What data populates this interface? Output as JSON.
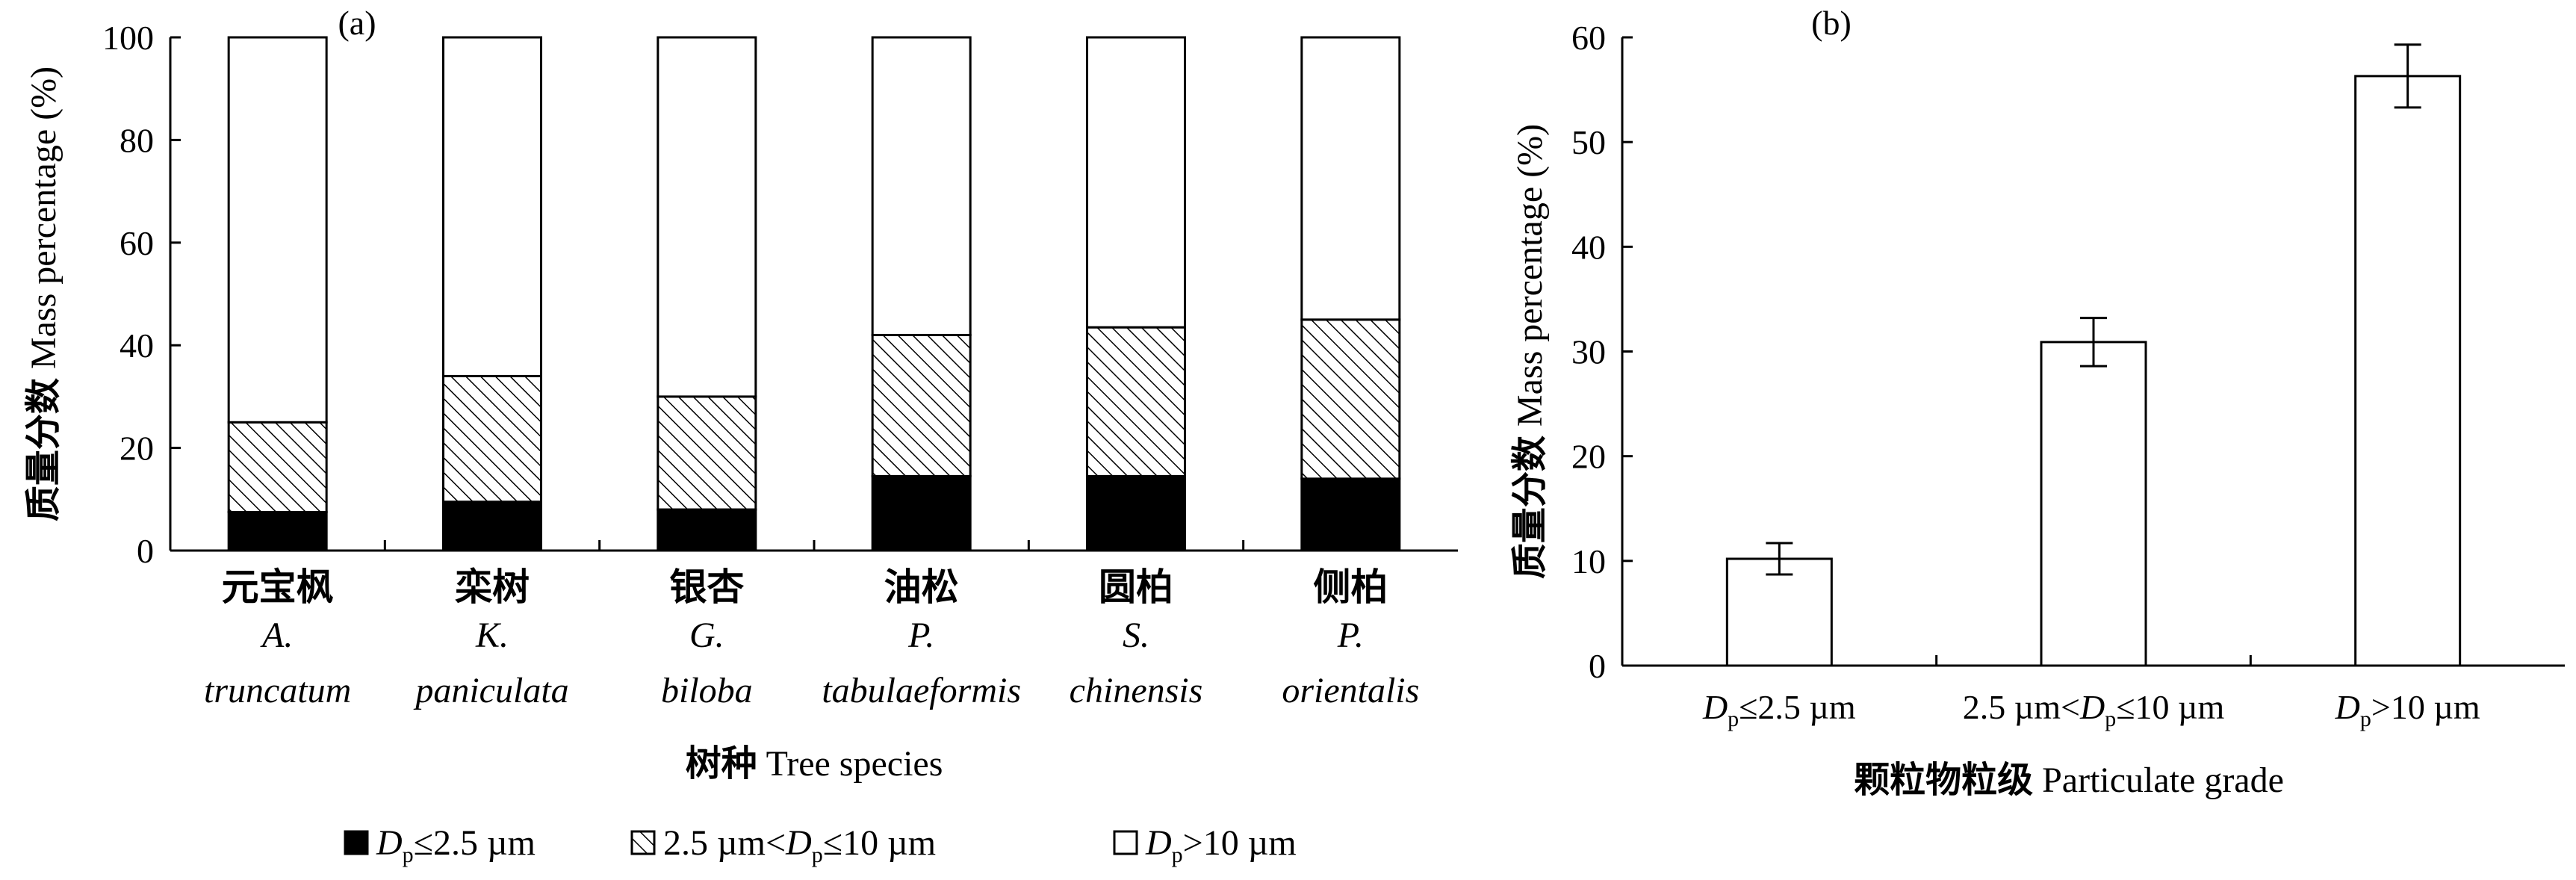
{
  "chart_data": [
    {
      "panel": "(a)",
      "type": "bar",
      "stacked": true,
      "title": "",
      "categories": [
        {
          "cn": "元宝枫",
          "latin1": "A.",
          "latin2": "truncatum"
        },
        {
          "cn": "栾树",
          "latin1": "K.",
          "latin2": "paniculata"
        },
        {
          "cn": "银杏",
          "latin1": "G.",
          "latin2": "biloba"
        },
        {
          "cn": "油松",
          "latin1": "P.",
          "latin2": "tabulaeformis"
        },
        {
          "cn": "圆柏",
          "latin1": "S.",
          "latin2": "chinensis"
        },
        {
          "cn": "侧柏",
          "latin1": "P.",
          "latin2": "orientalis"
        }
      ],
      "series": [
        {
          "name": "Dp≤2.5 µm",
          "fill": "solid",
          "values": [
            7.5,
            9.5,
            8.0,
            14.5,
            14.5,
            14.0
          ]
        },
        {
          "name": "2.5 µm<Dp≤10 µm",
          "fill": "hatched",
          "values": [
            17.5,
            24.5,
            22.0,
            27.5,
            29.0,
            31.0
          ]
        },
        {
          "name": "Dp>10 µm",
          "fill": "white",
          "values": [
            75.0,
            66.0,
            70.0,
            58.0,
            56.5,
            55.0
          ]
        }
      ],
      "xlabel_cn": "树种",
      "xlabel_en": "Tree species",
      "ylabel_cn": "质量分数",
      "ylabel_en": "Mass percentage (%)",
      "ylim": [
        0,
        100
      ],
      "yticks": [
        0,
        20,
        40,
        60,
        80,
        100
      ],
      "legend_position": "bottom",
      "legend": [
        {
          "prefix": "",
          "italic": "D",
          "sub": "p",
          "suffix": "≤2.5 µm"
        },
        {
          "prefix": "2.5 µm<",
          "italic": "D",
          "sub": "p",
          "suffix": "≤10 µm"
        },
        {
          "prefix": "",
          "italic": "D",
          "sub": "p",
          "suffix": ">10 µm"
        }
      ]
    },
    {
      "panel": "(b)",
      "type": "bar",
      "title": "",
      "categories": [
        {
          "prefix": "",
          "italic": "D",
          "sub": "p",
          "suffix": "≤2.5 µm"
        },
        {
          "prefix": "2.5 µm<",
          "italic": "D",
          "sub": "p",
          "suffix": "≤10 µm"
        },
        {
          "prefix": "",
          "italic": "D",
          "sub": "p",
          "suffix": ">10 µm"
        }
      ],
      "values": [
        10.2,
        30.9,
        56.3
      ],
      "errors": [
        1.5,
        2.3,
        3.0
      ],
      "xlabel_cn": "颗粒物粒级",
      "xlabel_en": "Particulate grade",
      "ylabel_cn": "质量分数",
      "ylabel_en": "Mass percentage (%)",
      "ylim": [
        0,
        60
      ],
      "yticks": [
        0,
        10,
        20,
        30,
        40,
        50,
        60
      ]
    }
  ]
}
